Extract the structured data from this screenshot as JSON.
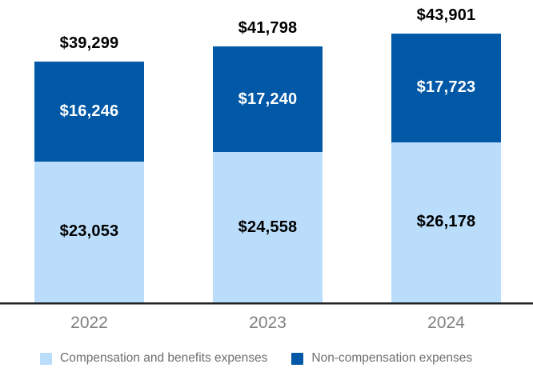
{
  "chart_data": {
    "type": "bar",
    "subtype": "stacked",
    "title": "",
    "categories": [
      "2022",
      "2023",
      "2024"
    ],
    "series": [
      {
        "name": "Compensation and benefits expenses",
        "color": "#B9DDFB",
        "label_color": "#000000",
        "values": [
          23053,
          24558,
          26178
        ],
        "labels": [
          "$23,053",
          "$24,558",
          "$26,178"
        ]
      },
      {
        "name": "Non-compensation expenses",
        "color": "#0058A6",
        "label_color": "#FFFFFF",
        "values": [
          16246,
          17240,
          17723
        ],
        "labels": [
          "$16,246",
          "$17,240",
          "$17,723"
        ]
      }
    ],
    "totals": {
      "values": [
        39299,
        41798,
        43901
      ],
      "labels": [
        "$39,299",
        "$41,798",
        "$43,901"
      ]
    },
    "xlabel": "",
    "ylabel": "",
    "grid": false,
    "legend_position": "bottom"
  }
}
